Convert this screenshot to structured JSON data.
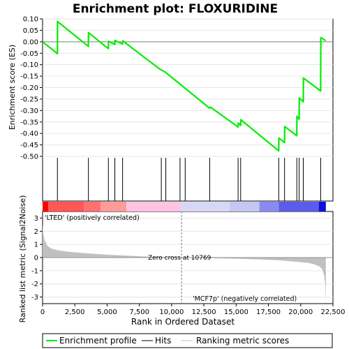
{
  "chart_data": {
    "type": "line",
    "title": "Enrichment plot: FLOXURIDINE",
    "x_label": "Rank in Ordered Dataset",
    "x_range": [
      0,
      22500
    ],
    "x_ticks": [
      0,
      2500,
      5000,
      7500,
      10000,
      12500,
      15000,
      17500,
      20000,
      22500
    ],
    "x_tick_labels": [
      "0",
      "2,500",
      "5,000",
      "7,500",
      "10,000",
      "12,500",
      "15,000",
      "17,500",
      "20,000",
      "22,500"
    ],
    "enrichment": {
      "y_label": "Enrichment score (ES)",
      "y_range": [
        -0.5,
        0.1
      ],
      "y_ticks": [
        0.1,
        0.05,
        0.0,
        -0.05,
        -0.1,
        -0.15,
        -0.2,
        -0.25,
        -0.3,
        -0.35,
        -0.4,
        -0.45,
        -0.5
      ],
      "y_tick_labels": [
        "0.10",
        "0.05",
        "0.00",
        "-0.05",
        "-0.10",
        "-0.15",
        "-0.20",
        "-0.25",
        "-0.30",
        "-0.35",
        "-0.40",
        "-0.45",
        "-0.50"
      ],
      "line_color": "#00ee00",
      "points": [
        [
          0,
          0.0
        ],
        [
          1150,
          -0.052
        ],
        [
          1160,
          0.088
        ],
        [
          3550,
          -0.02
        ],
        [
          3560,
          0.04
        ],
        [
          5100,
          -0.03
        ],
        [
          5110,
          0.002
        ],
        [
          5600,
          -0.012
        ],
        [
          5610,
          0.006
        ],
        [
          6200,
          -0.01
        ],
        [
          6210,
          0.004
        ],
        [
          9100,
          -0.12
        ],
        [
          9500,
          -0.132
        ],
        [
          12950,
          -0.29
        ],
        [
          13000,
          -0.285
        ],
        [
          15150,
          -0.372
        ],
        [
          15160,
          -0.355
        ],
        [
          15350,
          -0.365
        ],
        [
          15360,
          -0.34
        ],
        [
          18300,
          -0.476
        ],
        [
          18310,
          -0.42
        ],
        [
          18750,
          -0.44
        ],
        [
          18760,
          -0.37
        ],
        [
          19700,
          -0.41
        ],
        [
          19710,
          -0.325
        ],
        [
          19880,
          -0.338
        ],
        [
          19890,
          -0.245
        ],
        [
          20200,
          -0.262
        ],
        [
          20210,
          -0.158
        ],
        [
          21550,
          -0.215
        ],
        [
          21560,
          0.018
        ],
        [
          21950,
          0.005
        ]
      ]
    },
    "hits": [
      1150,
      3550,
      5100,
      5600,
      6200,
      9200,
      9550,
      10650,
      11050,
      12950,
      15150,
      15350,
      18300,
      18750,
      19700,
      19880,
      20200,
      21550
    ],
    "ranked_metric": {
      "y_label": "Ranked list metric (Signal2Noise)",
      "y_range": [
        -3.5,
        3.5
      ],
      "y_ticks": [
        3,
        2,
        1,
        0,
        -1,
        -2,
        -3
      ],
      "y_tick_labels": [
        "3",
        "2",
        "1",
        "0",
        "-1",
        "-2",
        "-3"
      ],
      "fill_color": "#c0c0c0",
      "points": [
        [
          0,
          2.6
        ],
        [
          40,
          1.9
        ],
        [
          150,
          1.35
        ],
        [
          350,
          0.9
        ],
        [
          700,
          0.68
        ],
        [
          1200,
          0.55
        ],
        [
          2000,
          0.44
        ],
        [
          3500,
          0.32
        ],
        [
          5000,
          0.22
        ],
        [
          6500,
          0.15
        ],
        [
          8000,
          0.08
        ],
        [
          9500,
          0.03
        ],
        [
          10769,
          0.0
        ],
        [
          12500,
          -0.03
        ],
        [
          14000,
          -0.07
        ],
        [
          15500,
          -0.1
        ],
        [
          17000,
          -0.15
        ],
        [
          18500,
          -0.22
        ],
        [
          19500,
          -0.3
        ],
        [
          20500,
          -0.4
        ],
        [
          21000,
          -0.5
        ],
        [
          21400,
          -0.65
        ],
        [
          21650,
          -0.85
        ],
        [
          21800,
          -1.3
        ],
        [
          21900,
          -2.0
        ],
        [
          21950,
          -3.4
        ]
      ],
      "zero_cross_rank": 10769,
      "zero_cross_label": "Zero cross at 10769",
      "positive_label": "'LTED' (positively correlated)",
      "negative_label": "'MCF7p' (negatively correlated)",
      "positive_label_color": "#cc0000",
      "negative_label_color": "#0000cc"
    },
    "color_bar": {
      "max_rank": 21950,
      "segments": [
        {
          "start": 0,
          "end": 450,
          "color": "#ff0000"
        },
        {
          "start": 450,
          "end": 3200,
          "color": "#ff5656"
        },
        {
          "start": 3200,
          "end": 4500,
          "color": "#ff7070"
        },
        {
          "start": 4500,
          "end": 6500,
          "color": "#ff9a9a"
        },
        {
          "start": 6500,
          "end": 10700,
          "color": "#ffc4e2"
        },
        {
          "start": 10700,
          "end": 14500,
          "color": "#d8d8f6"
        },
        {
          "start": 14500,
          "end": 16800,
          "color": "#c6c6f2"
        },
        {
          "start": 16800,
          "end": 18300,
          "color": "#8a8af2"
        },
        {
          "start": 18300,
          "end": 21400,
          "color": "#5c5cea"
        },
        {
          "start": 21400,
          "end": 21950,
          "color": "#1010dd"
        }
      ]
    },
    "legend": {
      "position": "bottom",
      "items": [
        {
          "label": "Enrichment profile",
          "color": "#00ee00"
        },
        {
          "label": "Hits",
          "color": "#000000"
        },
        {
          "label": "Ranking metric scores",
          "color": "#c0c0c0"
        }
      ]
    }
  }
}
